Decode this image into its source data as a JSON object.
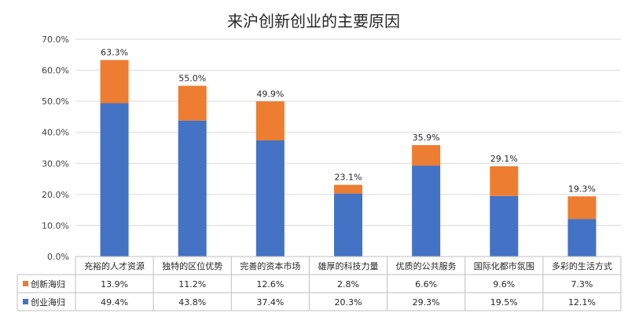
{
  "chart_data": {
    "type": "bar",
    "stacked": true,
    "title": "来沪创新创业的主要原因",
    "categories": [
      "充裕的人才资源",
      "独特的区位优势",
      "完善的资本市场",
      "雄厚的科技力量",
      "优质的公共服务",
      "国际化都市氛围",
      "多彩的生活方式"
    ],
    "series": [
      {
        "name": "创业海归",
        "color": "#4472C4",
        "values": [
          49.4,
          43.8,
          37.4,
          20.3,
          29.3,
          19.5,
          12.1
        ],
        "value_labels": [
          "49.4%",
          "43.8%",
          "37.4%",
          "20.3%",
          "29.3%",
          "19.5%",
          "12.1%"
        ]
      },
      {
        "name": "创新海归",
        "color": "#ED7D31",
        "values": [
          13.9,
          11.2,
          12.6,
          2.8,
          6.6,
          9.6,
          7.3
        ],
        "value_labels": [
          "13.9%",
          "11.2%",
          "12.6%",
          "2.8%",
          "6.6%",
          "9.6%",
          "7.3%"
        ]
      }
    ],
    "totals": [
      63.3,
      55.0,
      49.9,
      23.1,
      35.9,
      29.1,
      19.3
    ],
    "total_labels": [
      "63.3%",
      "55.0%",
      "49.9%",
      "23.1%",
      "35.9%",
      "29.1%",
      "19.3%"
    ],
    "ylim": [
      0,
      70
    ],
    "yticks": [
      0,
      10,
      20,
      30,
      40,
      50,
      60,
      70
    ],
    "ytick_labels": [
      "0.0%",
      "10.0%",
      "20.0%",
      "30.0%",
      "40.0%",
      "50.0%",
      "60.0%",
      "70.0%"
    ],
    "grid": true,
    "data_table": true
  }
}
